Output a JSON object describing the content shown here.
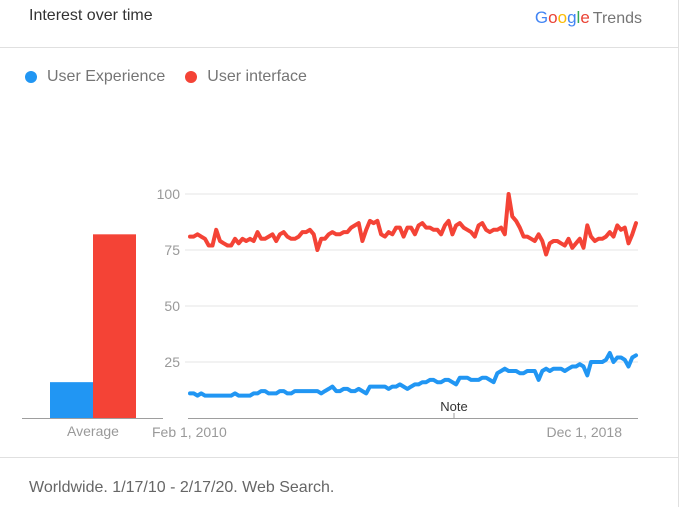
{
  "header": {
    "title": "Interest over time",
    "brand_google": [
      "G",
      "o",
      "o",
      "g",
      "l",
      "e"
    ],
    "brand_google_colors": [
      "#4285f4",
      "#ea4335",
      "#fbbc05",
      "#4285f4",
      "#34a853",
      "#ea4335"
    ],
    "brand_trends": "Trends"
  },
  "legend": [
    {
      "label": "User Experience",
      "color": "#2196f3"
    },
    {
      "label": "User interface",
      "color": "#f44336"
    }
  ],
  "footer": {
    "text": "Worldwide. 1/17/10 - 2/17/20. Web Search."
  },
  "chart_data": {
    "type": "line",
    "title": "Interest over time",
    "xlabel": "",
    "ylabel": "",
    "ylim": [
      0,
      100
    ],
    "yticks": [
      25,
      50,
      75,
      100
    ],
    "xtick_labels": [
      "Feb 1, 2010",
      "Dec 1, 2018"
    ],
    "annotation": "Note",
    "grid": true,
    "legend_position": "top-left",
    "average": {
      "label": "Average",
      "values": [
        {
          "series": "User Experience",
          "value": 16
        },
        {
          "series": "User interface",
          "value": 82
        }
      ]
    },
    "series": [
      {
        "name": "User Experience",
        "color": "#2196f3",
        "values": [
          11,
          11,
          10,
          11,
          10,
          10,
          10,
          10,
          10,
          10,
          10,
          10,
          11,
          10,
          10,
          10,
          10,
          11,
          11,
          12,
          12,
          11,
          11,
          11,
          12,
          12,
          11,
          11,
          12,
          12,
          12,
          12,
          12,
          12,
          12,
          11,
          12,
          13,
          14,
          12,
          12,
          13,
          13,
          12,
          12,
          13,
          12,
          11,
          14,
          14,
          14,
          14,
          14,
          13,
          14,
          14,
          15,
          14,
          13,
          14,
          15,
          15,
          16,
          16,
          17,
          17,
          16,
          16,
          17,
          17,
          16,
          15,
          18,
          18,
          18,
          17,
          17,
          17,
          18,
          18,
          17,
          16,
          20,
          21,
          22,
          21,
          21,
          21,
          20,
          20,
          21,
          21,
          21,
          17,
          21,
          22,
          21,
          22,
          22,
          22,
          21,
          22,
          23,
          23,
          24,
          23,
          19,
          25,
          25,
          25,
          25,
          26,
          29,
          25,
          27,
          27,
          26,
          23,
          27,
          28
        ]
      },
      {
        "name": "User interface",
        "color": "#f44336",
        "values": [
          81,
          81,
          82,
          81,
          80,
          77,
          77,
          84,
          79,
          78,
          77,
          77,
          80,
          78,
          80,
          79,
          80,
          79,
          83,
          80,
          80,
          81,
          82,
          79,
          82,
          83,
          81,
          80,
          80,
          81,
          83,
          83,
          84,
          82,
          75,
          80,
          80,
          82,
          83,
          82,
          82,
          83,
          83,
          85,
          86,
          87,
          79,
          84,
          88,
          87,
          88,
          82,
          81,
          83,
          82,
          85,
          85,
          81,
          85,
          85,
          82,
          86,
          87,
          85,
          85,
          84,
          84,
          82,
          86,
          88,
          82,
          86,
          87,
          85,
          84,
          83,
          81,
          86,
          87,
          84,
          83,
          84,
          84,
          85,
          82,
          100,
          90,
          88,
          85,
          81,
          81,
          80,
          79,
          82,
          79,
          73,
          78,
          79,
          79,
          78,
          77,
          80,
          76,
          78,
          80,
          76,
          86,
          81,
          79,
          80,
          80,
          81,
          83,
          81,
          86,
          84,
          85,
          78,
          82,
          87
        ]
      }
    ]
  }
}
